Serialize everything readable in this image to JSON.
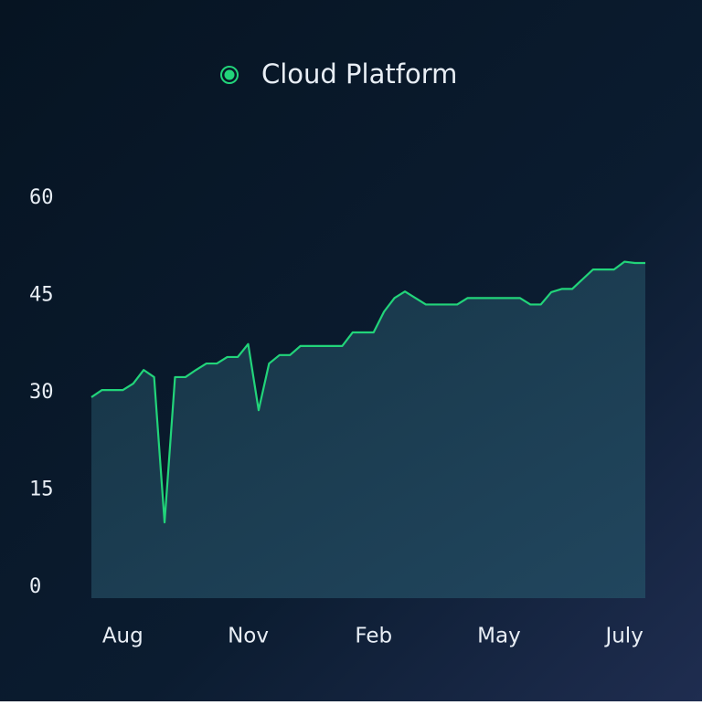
{
  "chart_data": {
    "type": "area",
    "categories": [
      null,
      null,
      null,
      "Aug",
      null,
      null,
      null,
      null,
      null,
      null,
      null,
      null,
      null,
      null,
      null,
      "Nov",
      null,
      null,
      null,
      null,
      null,
      null,
      null,
      null,
      null,
      null,
      null,
      "Feb",
      null,
      null,
      null,
      null,
      null,
      null,
      null,
      null,
      null,
      null,
      null,
      "May",
      null,
      null,
      null,
      null,
      null,
      null,
      null,
      null,
      null,
      null,
      null,
      "July",
      null,
      null
    ],
    "series": [
      {
        "name": "Cloud Platform",
        "color": "#22d47a",
        "values": [
          29.3,
          30.4,
          30.4,
          30.4,
          31.4,
          33.5,
          32.4,
          10,
          32.4,
          32.4,
          33.5,
          34.5,
          34.5,
          35.5,
          35.5,
          37.5,
          27.3,
          34.5,
          35.8,
          35.8,
          37.2,
          37.2,
          37.2,
          37.2,
          37.2,
          39.3,
          39.3,
          39.3,
          42.5,
          44.6,
          45.6,
          44.6,
          43.6,
          43.6,
          43.6,
          43.6,
          44.6,
          44.6,
          44.6,
          44.6,
          44.6,
          44.6,
          43.6,
          43.6,
          45.5,
          46,
          46,
          47.5,
          49,
          49,
          49,
          50.2,
          50,
          50
        ]
      }
    ],
    "ylim": [
      0,
      60
    ],
    "yticks": [
      0,
      15,
      30,
      45,
      60
    ],
    "grid": false
  }
}
